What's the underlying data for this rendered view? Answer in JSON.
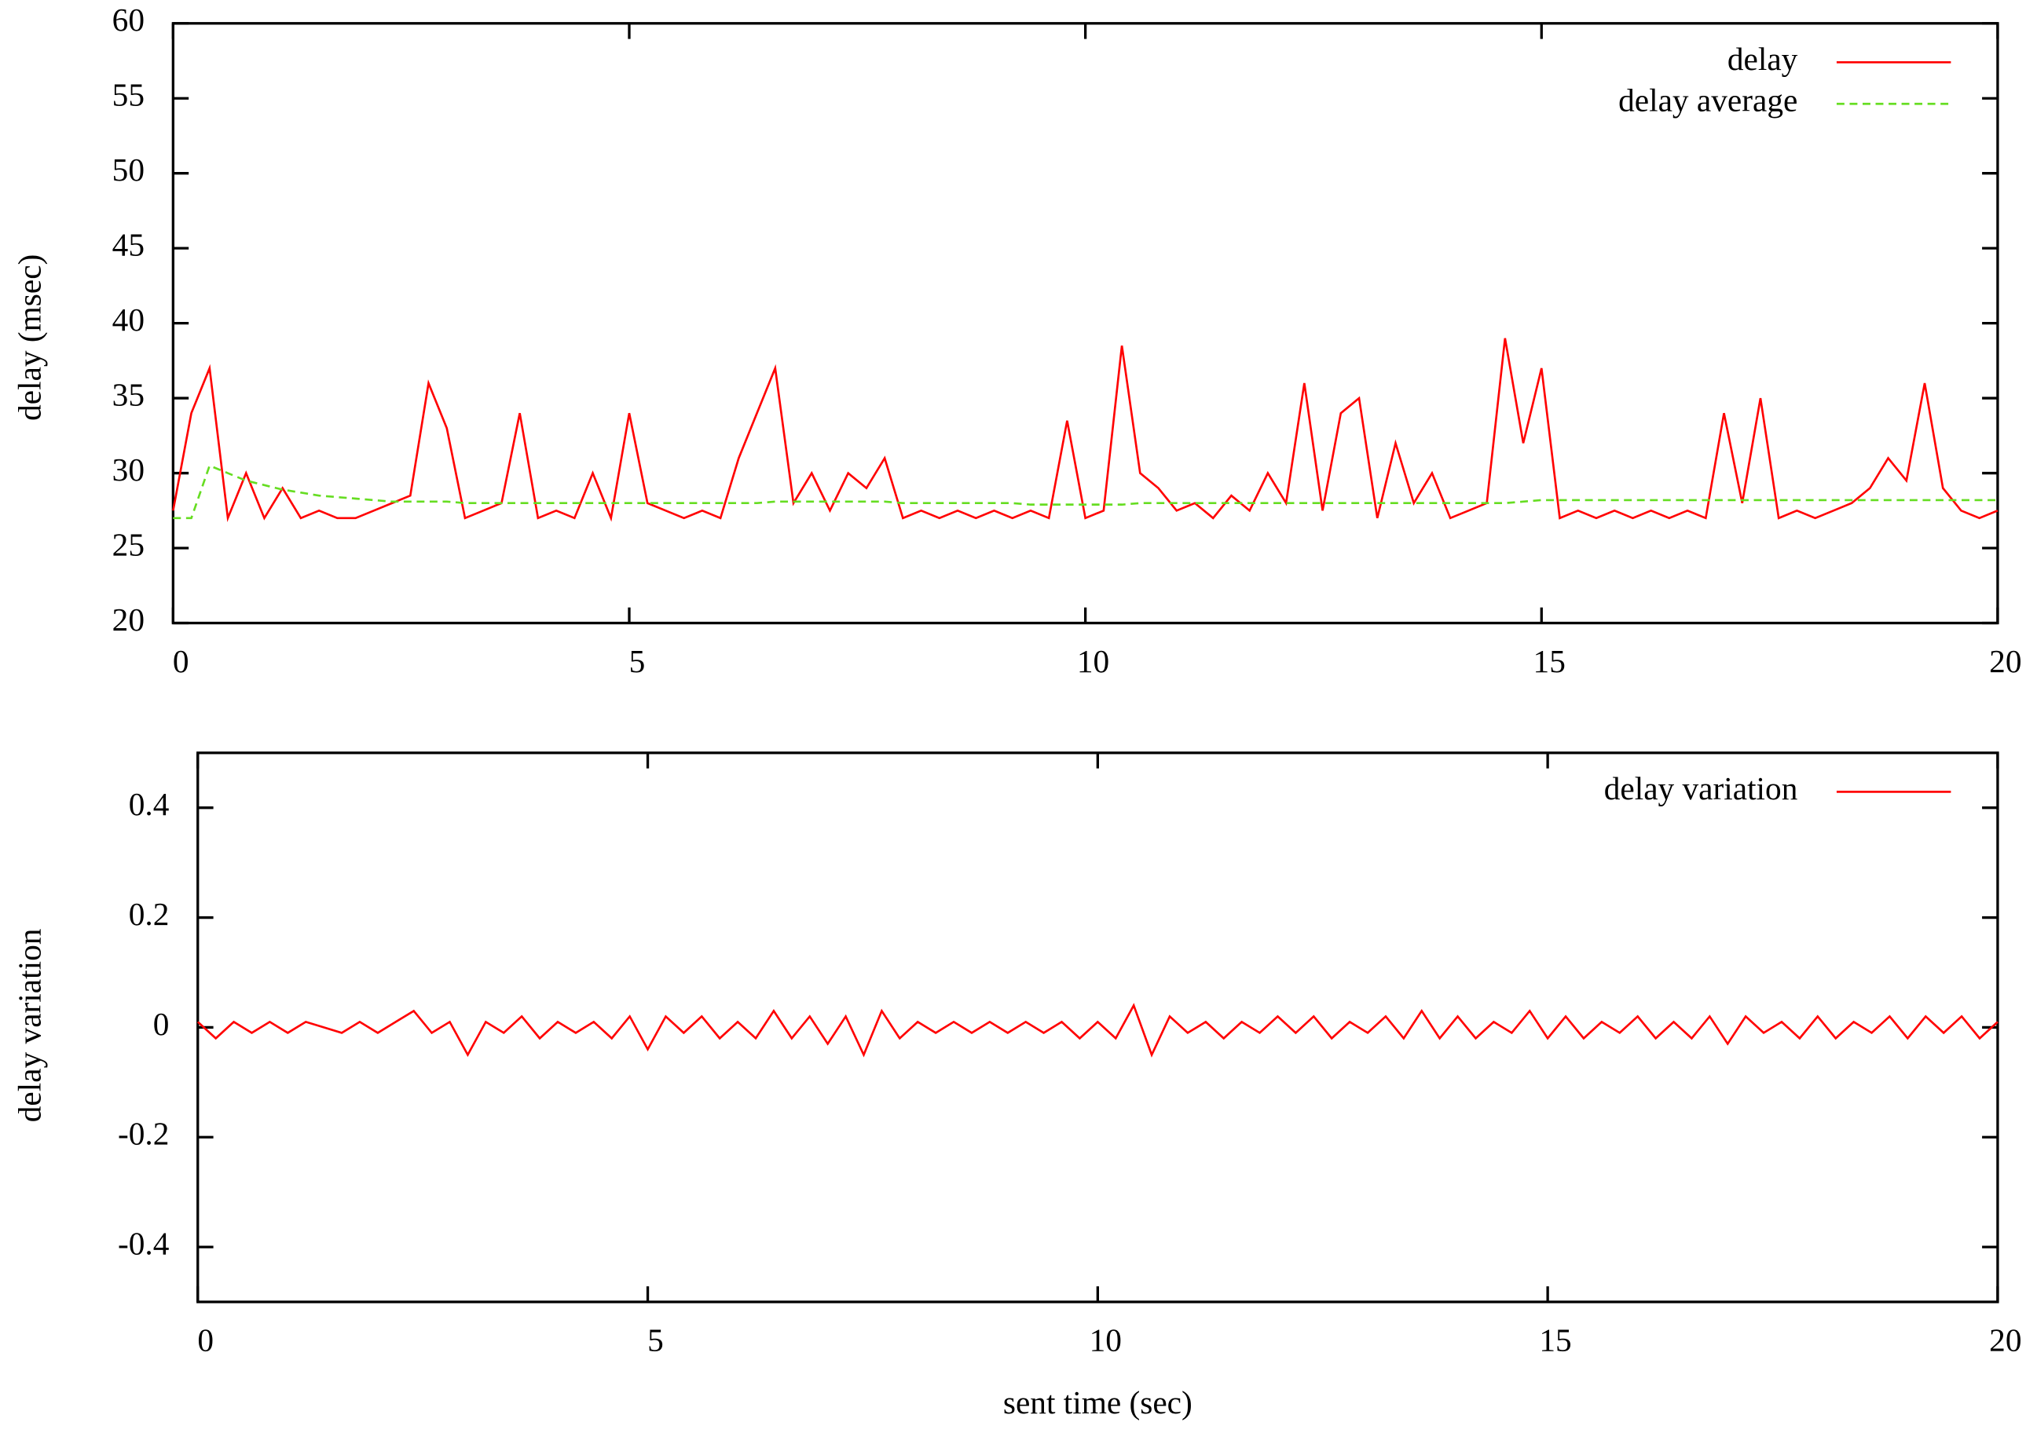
{
  "chart_data": [
    {
      "type": "line",
      "ylabel": "delay (msec)",
      "x": [
        0,
        0.2,
        0.4,
        0.6,
        0.8,
        1,
        1.2,
        1.4,
        1.6,
        1.8,
        2,
        2.2,
        2.4,
        2.6,
        2.8,
        3,
        3.2,
        3.4,
        3.6,
        3.8,
        4,
        4.2,
        4.4,
        4.6,
        4.8,
        5,
        5.2,
        5.4,
        5.6,
        5.8,
        6,
        6.2,
        6.4,
        6.6,
        6.8,
        7,
        7.2,
        7.4,
        7.6,
        7.8,
        8,
        8.2,
        8.4,
        8.6,
        8.8,
        9,
        9.2,
        9.4,
        9.6,
        9.8,
        10,
        10.2,
        10.4,
        10.6,
        10.8,
        11,
        11.2,
        11.4,
        11.6,
        11.8,
        12,
        12.2,
        12.4,
        12.6,
        12.8,
        13,
        13.2,
        13.4,
        13.6,
        13.8,
        14,
        14.2,
        14.4,
        14.6,
        14.8,
        15,
        15.2,
        15.4,
        15.6,
        15.8,
        16,
        16.2,
        16.4,
        16.6,
        16.8,
        17,
        17.2,
        17.4,
        17.6,
        17.8,
        18,
        18.2,
        18.4,
        18.6,
        18.8,
        19,
        19.2,
        19.4,
        19.6,
        19.8,
        20
      ],
      "series": [
        {
          "name": "delay",
          "color": "#ff0000",
          "dashed": false,
          "values": [
            27.5,
            34,
            37,
            27,
            30,
            27,
            29,
            27,
            27.5,
            27,
            27,
            27.5,
            28,
            28.5,
            36,
            33,
            27,
            27.5,
            28,
            34,
            27,
            27.5,
            27,
            30,
            27,
            34,
            28,
            27.5,
            27,
            27.5,
            27,
            31,
            34,
            37,
            28,
            30,
            27.5,
            30,
            29,
            31,
            27,
            27.5,
            27,
            27.5,
            27,
            27.5,
            27,
            27.5,
            27,
            33.5,
            27,
            27.5,
            38.5,
            30,
            29,
            27.5,
            28,
            27,
            28.5,
            27.5,
            30,
            28,
            36,
            27.5,
            34,
            35,
            27,
            32,
            28,
            30,
            27,
            27.5,
            28,
            39,
            32,
            37,
            27,
            27.5,
            27,
            27.5,
            27,
            27.5,
            27,
            27.5,
            27,
            34,
            28,
            35,
            27,
            27.5,
            27,
            27.5,
            28,
            29,
            31,
            29.5,
            36,
            29,
            27.5,
            27,
            27.5
          ]
        },
        {
          "name": "delay average",
          "color": "#66dd22",
          "dashed": true,
          "values": [
            27,
            27,
            30.5,
            30,
            29.5,
            29.2,
            28.9,
            28.7,
            28.5,
            28.4,
            28.3,
            28.2,
            28.1,
            28.1,
            28.1,
            28.1,
            28,
            28,
            28,
            28,
            28,
            28,
            28,
            28,
            28,
            28,
            28,
            28,
            28,
            28,
            28,
            28,
            28,
            28.1,
            28.1,
            28.1,
            28.1,
            28.1,
            28.1,
            28.1,
            28,
            28,
            28,
            28,
            28,
            28,
            28,
            27.9,
            27.9,
            27.9,
            27.9,
            27.9,
            27.9,
            28,
            28,
            28,
            28,
            28,
            28,
            28,
            28,
            28,
            28,
            28,
            28,
            28,
            28,
            28,
            28,
            28,
            28,
            28,
            28,
            28,
            28.1,
            28.2,
            28.2,
            28.2,
            28.2,
            28.2,
            28.2,
            28.2,
            28.2,
            28.2,
            28.2,
            28.2,
            28.2,
            28.2,
            28.2,
            28.2,
            28.2,
            28.2,
            28.2,
            28.2,
            28.2,
            28.2,
            28.2,
            28.2,
            28.2,
            28.2,
            28.2
          ]
        }
      ],
      "xlim": [
        0,
        20
      ],
      "xticks": [
        0,
        5,
        10,
        15,
        20
      ],
      "ylim": [
        20,
        60
      ],
      "yticks": [
        20,
        25,
        30,
        35,
        40,
        45,
        50,
        55,
        60
      ],
      "legend": "upper right",
      "grid": false
    },
    {
      "type": "line",
      "xlabel": "sent time (sec)",
      "ylabel": "delay variation",
      "x": [
        0,
        0.2,
        0.4,
        0.6,
        0.8,
        1,
        1.2,
        1.4,
        1.6,
        1.8,
        2,
        2.2,
        2.4,
        2.6,
        2.8,
        3,
        3.2,
        3.4,
        3.6,
        3.8,
        4,
        4.2,
        4.4,
        4.6,
        4.8,
        5,
        5.2,
        5.4,
        5.6,
        5.8,
        6,
        6.2,
        6.4,
        6.6,
        6.8,
        7,
        7.2,
        7.4,
        7.6,
        7.8,
        8,
        8.2,
        8.4,
        8.6,
        8.8,
        9,
        9.2,
        9.4,
        9.6,
        9.8,
        10,
        10.2,
        10.4,
        10.6,
        10.8,
        11,
        11.2,
        11.4,
        11.6,
        11.8,
        12,
        12.2,
        12.4,
        12.6,
        12.8,
        13,
        13.2,
        13.4,
        13.6,
        13.8,
        14,
        14.2,
        14.4,
        14.6,
        14.8,
        15,
        15.2,
        15.4,
        15.6,
        15.8,
        16,
        16.2,
        16.4,
        16.6,
        16.8,
        17,
        17.2,
        17.4,
        17.6,
        17.8,
        18,
        18.2,
        18.4,
        18.6,
        18.8,
        19,
        19.2,
        19.4,
        19.6,
        19.8,
        20
      ],
      "series": [
        {
          "name": "delay variation",
          "color": "#ff0000",
          "dashed": false,
          "values": [
            0.01,
            -0.02,
            0.01,
            -0.01,
            0.01,
            -0.01,
            0.01,
            0,
            -0.01,
            0.01,
            -0.01,
            0.01,
            0.03,
            -0.01,
            0.01,
            -0.05,
            0.01,
            -0.01,
            0.02,
            -0.02,
            0.01,
            -0.01,
            0.01,
            -0.02,
            0.02,
            -0.04,
            0.02,
            -0.01,
            0.02,
            -0.02,
            0.01,
            -0.02,
            0.03,
            -0.02,
            0.02,
            -0.03,
            0.02,
            -0.05,
            0.03,
            -0.02,
            0.01,
            -0.01,
            0.01,
            -0.01,
            0.01,
            -0.01,
            0.01,
            -0.01,
            0.01,
            -0.02,
            0.01,
            -0.02,
            0.04,
            -0.05,
            0.02,
            -0.01,
            0.01,
            -0.02,
            0.01,
            -0.01,
            0.02,
            -0.01,
            0.02,
            -0.02,
            0.01,
            -0.01,
            0.02,
            -0.02,
            0.03,
            -0.02,
            0.02,
            -0.02,
            0.01,
            -0.01,
            0.03,
            -0.02,
            0.02,
            -0.02,
            0.01,
            -0.01,
            0.02,
            -0.02,
            0.01,
            -0.02,
            0.02,
            -0.03,
            0.02,
            -0.01,
            0.01,
            -0.02,
            0.02,
            -0.02,
            0.01,
            -0.01,
            0.02,
            -0.02,
            0.02,
            -0.01,
            0.02,
            -0.02,
            0.01
          ]
        }
      ],
      "xlim": [
        0,
        20
      ],
      "xticks": [
        0,
        5,
        10,
        15,
        20
      ],
      "ylim": [
        -0.5,
        0.5
      ],
      "yticks": [
        -0.4,
        -0.2,
        0,
        0.2,
        0.4
      ],
      "legend": "upper right",
      "grid": false
    }
  ]
}
